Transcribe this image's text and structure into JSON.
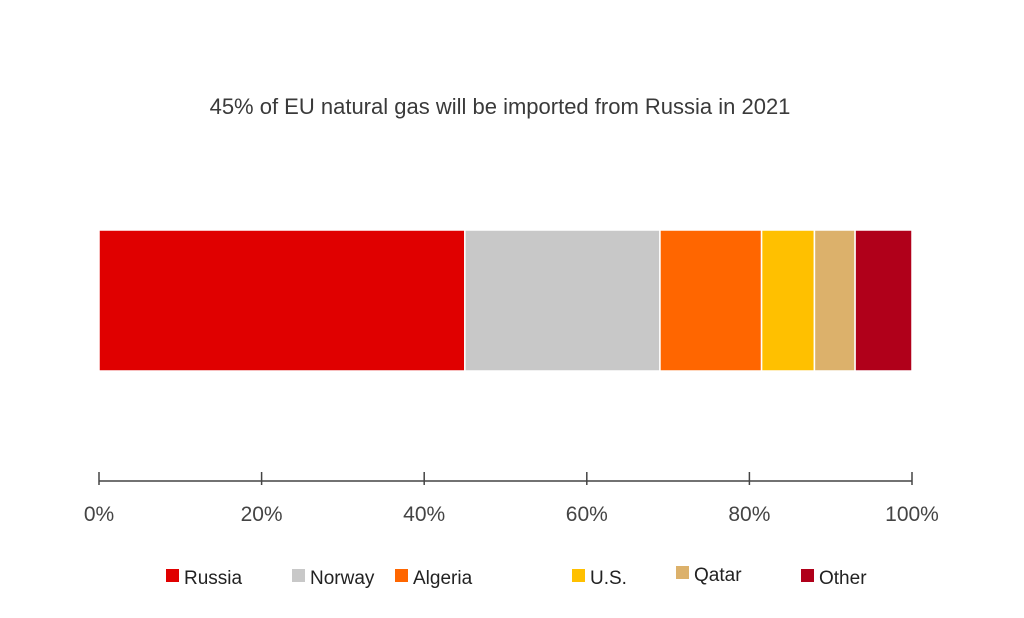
{
  "chart_data": {
    "type": "bar",
    "orientation": "horizontal",
    "stacked": true,
    "title": "45% of EU natural gas will be imported from Russia in 2021",
    "xlim": [
      0,
      100
    ],
    "x_tick_labels": [
      "0%",
      "20%",
      "40%",
      "60%",
      "80%",
      "100%"
    ],
    "grid": false,
    "legend_position": "bottom",
    "series": [
      {
        "name": "Russia",
        "value": 45,
        "color": "#e00000"
      },
      {
        "name": "Norway",
        "value": 24,
        "color": "#c8c8c8"
      },
      {
        "name": "Algeria",
        "value": 12.5,
        "color": "#ff6600"
      },
      {
        "name": "U.S.",
        "value": 6.5,
        "color": "#ffc000"
      },
      {
        "name": "Qatar",
        "value": 5,
        "color": "#dcb16b"
      },
      {
        "name": "Other",
        "value": 7,
        "color": "#b0001a"
      }
    ]
  }
}
